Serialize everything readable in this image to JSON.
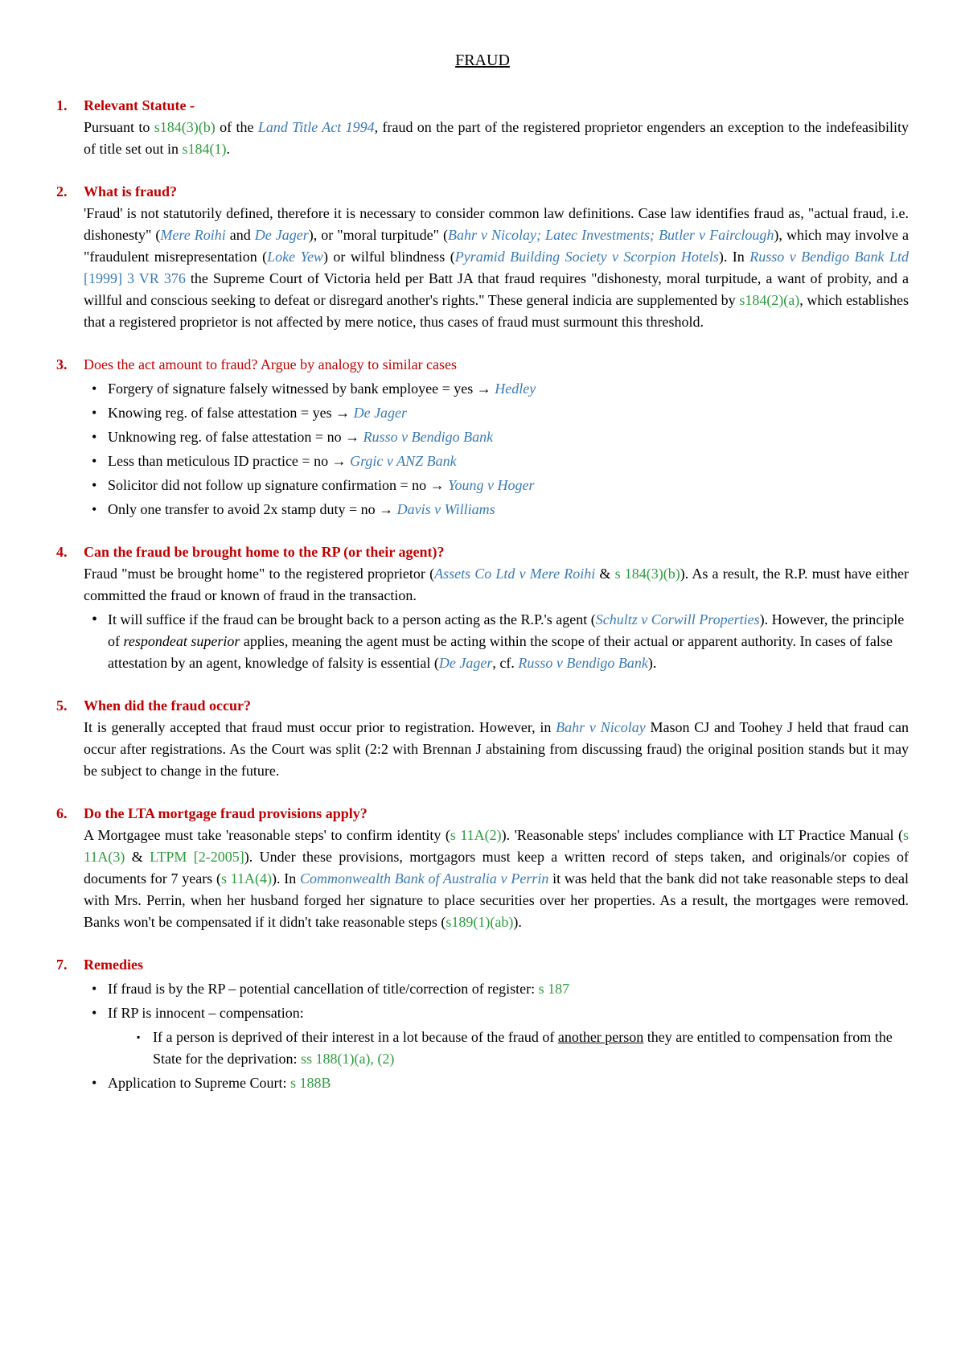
{
  "title": "FRAUD",
  "sections": [
    {
      "num": "1.",
      "heading": "Relevant Statute -",
      "body_html": "Pursuant to <span class='stat'>s184(3)(b)</span> of the <span class='case'>Land Title Act 1994</span>, fraud on the part of the registered proprietor engenders an exception to the indefeasibility of title set out in <span class='stat'>s184(1)</span>."
    },
    {
      "num": "2.",
      "heading": "What is fraud?",
      "body_html": "'Fraud' is not statutorily defined, therefore it is necessary to consider common law definitions. Case law identifies fraud as, \"actual fraud, i.e. dishonesty\" (<span class='case'>Mere Roihi</span> and <span class='case'>De Jager</span>), or \"moral turpitude\" (<span class='case'>Bahr v Nicolay; Latec Investments; Butler v Fairclough</span>), which may involve a \"fraudulent misrepresentation (<span class='case'>Loke Yew</span>) or wilful blindness (<span class='case'>Pyramid Building Society v Scorpion Hotels</span>). In <span class='case'>Russo v Bendigo Bank Ltd</span> <span class='caseref'>[1999] 3 VR 376</span> the Supreme Court of Victoria held per Batt JA that fraud requires \"dishonesty, moral turpitude, a want of probity, and a willful and conscious seeking to defeat or disregard another's rights.\" These general indicia are supplemented by <span class='stat'>s184(2)(a)</span>, which establishes that a registered proprietor is not affected by mere notice, thus cases of fraud must surmount this threshold."
    },
    {
      "num": "3.",
      "heading": "Does the act amount to fraud? Argue by analogy to similar cases",
      "heading_plain": true,
      "bullets": [
        "Forgery of signature falsely witnessed by bank employee = yes <span class='arrow'>→</span> <span class='case'>Hedley</span>",
        "Knowing reg. of false attestation = yes <span class='arrow'>→</span> <span class='case'>De Jager</span>",
        "Unknowing reg. of false attestation = no <span class='arrow'>→</span> <span class='case'>Russo v Bendigo Bank</span>",
        "Less than meticulous ID practice = no  <span class='arrow'>→</span> <span class='case'>Grgic v ANZ Bank</span>",
        "Solicitor did not follow up signature confirmation = no <span class='arrow'>→</span> <span class='case'>Young v Hoger</span>",
        "Only one transfer to avoid 2x stamp duty = no <span class='arrow'>→</span> <span class='case'>Davis v Williams</span>"
      ]
    },
    {
      "num": "4.",
      "heading": "Can the fraud be brought home to the RP (or their agent)?",
      "body_html": "Fraud \"must be brought home\" to the registered proprietor (<span class='case'>Assets Co Ltd v Mere Roihi</span> & <span class='stat'>s 184(3)(b)</span>). As a result, the R.P. must have either committed the fraud or known of fraud in the transaction.",
      "bullets_solid": [
        "It will suffice if the fraud can be brought back to a person acting as the R.P.'s agent (<span class='case'>Schultz v Corwill Properties</span>). However, the principle of <em class='term'>respondeat superior</em> applies, meaning the agent must be acting within the scope of their actual or apparent authority. In cases of false attestation by an agent, knowledge of falsity is essential (<span class='case'>De Jager</span>, cf. <span class='case'>Russo v Bendigo Bank</span>)."
      ]
    },
    {
      "num": "5.",
      "heading": "When did the fraud occur?",
      "body_html": "It is generally accepted that fraud must occur prior to registration. However, in <span class='case'>Bahr v Nicolay</span> Mason CJ and Toohey J held that fraud can occur after registrations. As the Court was split (2:2 with Brennan J abstaining from discussing fraud) the original position stands but it may be subject to change in the future."
    },
    {
      "num": "6.",
      "heading": "Do the LTA mortgage fraud provisions apply?",
      "body_html": "A Mortgagee must take 'reasonable steps' to confirm identity (<span class='stat'>s 11A(2)</span>). 'Reasonable steps' includes compliance with LT Practice Manual (<span class='stat'>s 11A(3)</span> & <span class='stat'>LTPM [2-2005]</span>). Under these provisions, mortgagors must keep a written record of steps taken, and originals/or copies of documents for 7 years (<span class='stat'>s 11A(4)</span>). In <span class='case'>Commonwealth Bank of Australia v Perrin</span> it was held that the bank did not take reasonable steps to deal with Mrs. Perrin, when her husband forged her signature to place securities over her properties. As a result, the mortgages were removed. Banks won't be compensated if it didn't take reasonable steps (<span class='stat'>s189(1)(ab)</span>)."
    },
    {
      "num": "7.",
      "heading": "Remedies",
      "bullets_mixed": [
        {
          "text": "If fraud is by the RP – potential cancellation of title/correction of register: <span class='stat'>s 187</span>"
        },
        {
          "text": "If RP is innocent – compensation:",
          "sub": [
            "If a person is deprived of their interest in a lot because of the fraud of <span class='u'>another person</span> they are entitled to compensation from the State for the deprivation: <span class='stat'>ss 188(1)(a), (2)</span>"
          ]
        },
        {
          "text": "Application to Supreme Court: <span class='stat'>s 188B</span>"
        }
      ]
    }
  ]
}
